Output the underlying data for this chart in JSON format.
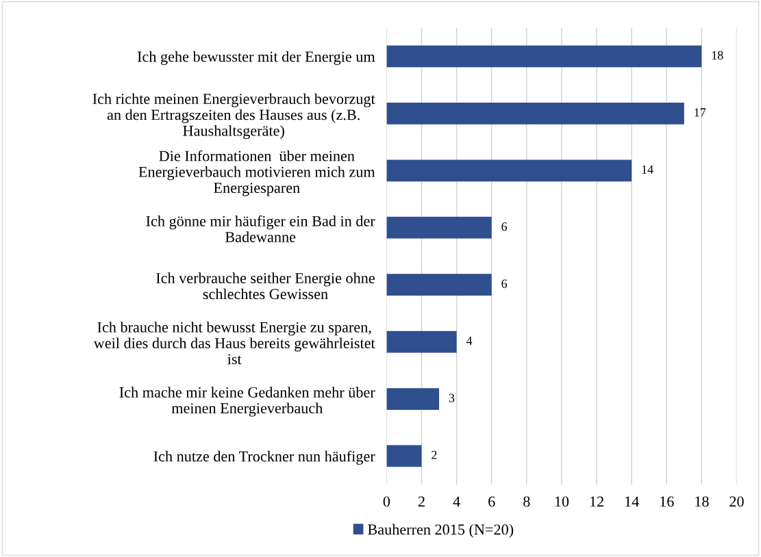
{
  "chart_data": {
    "type": "bar",
    "orientation": "horizontal",
    "categories": [
      "Ich gehe bewusster mit der Energie um",
      "Ich richte meinen Energieverbrauch bevorzugt\nan den Ertragszeiten des Hauses aus (z.B.\nHaushaltsgeräte)",
      "Die Informationen  über meinen\nEnergieverbauch motivieren mich zum\nEnergiesparen",
      "Ich gönne mir häufiger ein Bad in der\nBadewanne",
      "Ich verbrauche seither Energie ohne\nschlechtes Gewissen",
      "Ich brauche nicht bewusst Energie zu sparen,\nweil dies durch das Haus bereits gewährleistet\nist",
      "Ich mache mir keine Gedanken mehr über\nmeinen Energieverbauch",
      "Ich nutze den Trockner nun häufiger"
    ],
    "series": [
      {
        "name": "Bauherren 2015 (N=20)",
        "color": "#2f4f8f",
        "values": [
          18,
          17,
          14,
          6,
          6,
          4,
          3,
          2
        ]
      }
    ],
    "xlim": [
      0,
      20
    ],
    "xticks": [
      0,
      2,
      4,
      6,
      8,
      10,
      12,
      14,
      16,
      18,
      20
    ],
    "grid": "x",
    "legend": "bottom",
    "data_labels": true
  }
}
